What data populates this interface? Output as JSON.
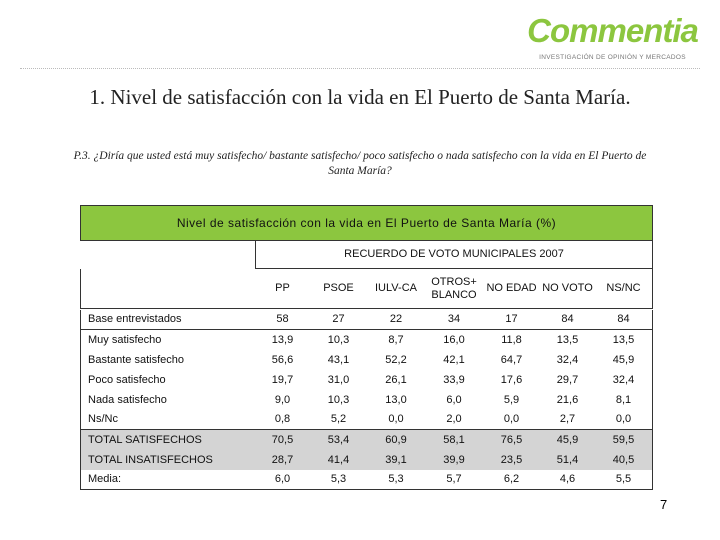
{
  "logo": {
    "name": "Commentia",
    "tagline": "INVESTIGACIÓN DE OPINIÓN Y MERCADOS"
  },
  "title": "1. Nivel de satisfacción con la vida en El Puerto de Santa María.",
  "question": "P.3. ¿Diría que usted está muy satisfecho/ bastante satisfecho/ poco satisfecho o nada satisfecho con la vida en El Puerto de Santa María?",
  "table": {
    "header": "Nivel de satisfacción con la vida en El Puerto de Santa María (%)",
    "subheader": "RECUERDO DE VOTO MUNICIPALES 2007",
    "columns": [
      "PP",
      "PSOE",
      "IULV-CA",
      "OTROS+ BLANCO",
      "NO EDAD",
      "NO VOTO",
      "NS/NC"
    ],
    "rows": [
      [
        "Base entrevistados",
        "58",
        "27",
        "22",
        "34",
        "17",
        "84",
        "84"
      ],
      [
        "Muy satisfecho",
        "13,9",
        "10,3",
        "8,7",
        "16,0",
        "11,8",
        "13,5",
        "13,5"
      ],
      [
        "Bastante satisfecho",
        "56,6",
        "43,1",
        "52,2",
        "42,1",
        "64,7",
        "32,4",
        "45,9"
      ],
      [
        "Poco satisfecho",
        "19,7",
        "31,0",
        "26,1",
        "33,9",
        "17,6",
        "29,7",
        "32,4"
      ],
      [
        "Nada satisfecho",
        "9,0",
        "10,3",
        "13,0",
        "6,0",
        "5,9",
        "21,6",
        "8,1"
      ],
      [
        "Ns/Nc",
        "0,8",
        "5,2",
        "0,0",
        "2,0",
        "0,0",
        "2,7",
        "0,0"
      ],
      [
        "TOTAL SATISFECHOS",
        "70,5",
        "53,4",
        "60,9",
        "58,1",
        "76,5",
        "45,9",
        "59,5"
      ],
      [
        "TOTAL INSATISFECHOS",
        "28,7",
        "41,4",
        "39,1",
        "39,9",
        "23,5",
        "51,4",
        "40,5"
      ],
      [
        "Media:",
        "6,0",
        "5,3",
        "5,3",
        "5,7",
        "6,2",
        "4,6",
        "5,5"
      ]
    ]
  },
  "page_number": "7"
}
